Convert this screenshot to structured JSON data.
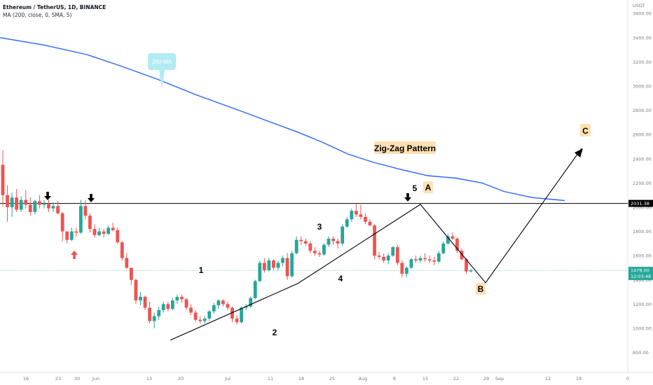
{
  "header": {
    "title": "Ethereum / TetherUS, 1D, BINANCE",
    "indicator": "MA (200, close, 0, SMA, 5)"
  },
  "axis": {
    "currency": "USDT",
    "y_ticks": [
      800,
      1000,
      1200,
      1400,
      1600,
      1800,
      2000,
      2200,
      2400,
      2600,
      2800,
      3000,
      3200,
      3400,
      3600
    ],
    "y_tick_labels": [
      "800.00",
      "1000.00",
      "1200.00",
      "1400.00",
      "1600.00",
      "1800.00",
      "2000.00",
      "2200.00",
      "2400.00",
      "2600.00",
      "2800.00",
      "3000.00",
      "3200.00",
      "3400.00",
      "3600.00"
    ],
    "x_tick_labels": [
      "16",
      "23",
      "30",
      "Jun",
      "13",
      "20",
      "Jul",
      "11",
      "18",
      "25",
      "Aug",
      "8",
      "15",
      "22",
      "29",
      "Sep",
      "12",
      "19",
      "0"
    ],
    "price_tag": "1479.00",
    "countdown": "12:03:48",
    "level_tag": "2031.38"
  },
  "annotations": {
    "ma_bubble": "200-MA",
    "pattern_title": "Zig-Zag Pattern",
    "waves": [
      "1",
      "2",
      "3",
      "4",
      "5"
    ],
    "abc": [
      "A",
      "B",
      "C"
    ]
  },
  "colors": {
    "bull": "#26a69a",
    "bear": "#ef5350",
    "ma": "#2962ff",
    "level": "#000000",
    "price_line": "#26a69a",
    "bubble": "#b2ebf2",
    "label_bg": "#ffe0b2"
  },
  "chart_data": {
    "type": "candlestick",
    "symbol": "Ethereum / TetherUS",
    "interval": "1D",
    "exchange": "BINANCE",
    "y_axis_unit": "USDT",
    "ylim": [
      700,
      3700
    ],
    "horizontal_level": 2031.38,
    "last_price": 1479.0,
    "candles_ohlc": [
      [
        2350,
        2470,
        2010,
        2100
      ],
      [
        2100,
        2180,
        1880,
        2000
      ],
      [
        2000,
        2120,
        1920,
        2080
      ],
      [
        2080,
        2150,
        1960,
        1980
      ],
      [
        1980,
        2090,
        1960,
        2060
      ],
      [
        2060,
        2140,
        1990,
        2020
      ],
      [
        2020,
        2080,
        1930,
        1960
      ],
      [
        1960,
        2060,
        1940,
        2050
      ],
      [
        2050,
        2100,
        1990,
        2020
      ],
      [
        2020,
        2060,
        1990,
        2030
      ],
      [
        2030,
        2060,
        1960,
        1990
      ],
      [
        1990,
        2040,
        1960,
        2010
      ],
      [
        2010,
        2050,
        1940,
        1950
      ],
      [
        1950,
        1960,
        1720,
        1800
      ],
      [
        1800,
        1800,
        1700,
        1730
      ],
      [
        1730,
        1830,
        1720,
        1800
      ],
      [
        1800,
        1830,
        1760,
        1790
      ],
      [
        1790,
        2060,
        1780,
        2010
      ],
      [
        2010,
        2060,
        1900,
        1930
      ],
      [
        1930,
        1950,
        1790,
        1820
      ],
      [
        1820,
        1860,
        1750,
        1770
      ],
      [
        1770,
        1830,
        1760,
        1800
      ],
      [
        1800,
        1820,
        1750,
        1780
      ],
      [
        1780,
        1850,
        1770,
        1830
      ],
      [
        1830,
        1870,
        1800,
        1810
      ],
      [
        1810,
        1830,
        1700,
        1710
      ],
      [
        1710,
        1720,
        1560,
        1580
      ],
      [
        1580,
        1620,
        1490,
        1500
      ],
      [
        1500,
        1500,
        1360,
        1400
      ],
      [
        1400,
        1410,
        1200,
        1230
      ],
      [
        1230,
        1300,
        1190,
        1260
      ],
      [
        1260,
        1270,
        1150,
        1170
      ],
      [
        1170,
        1220,
        1040,
        1060
      ],
      [
        1060,
        1130,
        1000,
        1100
      ],
      [
        1100,
        1180,
        1070,
        1150
      ],
      [
        1150,
        1220,
        1130,
        1200
      ],
      [
        1200,
        1220,
        1140,
        1160
      ],
      [
        1160,
        1250,
        1150,
        1230
      ],
      [
        1230,
        1280,
        1200,
        1260
      ],
      [
        1260,
        1280,
        1210,
        1240
      ],
      [
        1240,
        1250,
        1150,
        1170
      ],
      [
        1170,
        1200,
        1110,
        1130
      ],
      [
        1130,
        1150,
        1050,
        1070
      ],
      [
        1070,
        1100,
        1040,
        1060
      ],
      [
        1060,
        1100,
        1040,
        1080
      ],
      [
        1080,
        1150,
        1060,
        1140
      ],
      [
        1140,
        1210,
        1120,
        1190
      ],
      [
        1190,
        1240,
        1160,
        1230
      ],
      [
        1230,
        1240,
        1180,
        1200
      ],
      [
        1200,
        1220,
        1150,
        1170
      ],
      [
        1170,
        1180,
        1050,
        1080
      ],
      [
        1080,
        1110,
        1030,
        1050
      ],
      [
        1050,
        1180,
        1040,
        1170
      ],
      [
        1170,
        1200,
        1150,
        1180
      ],
      [
        1180,
        1260,
        1170,
        1250
      ],
      [
        1250,
        1400,
        1240,
        1390
      ],
      [
        1390,
        1560,
        1380,
        1540
      ],
      [
        1540,
        1580,
        1460,
        1480
      ],
      [
        1480,
        1580,
        1470,
        1560
      ],
      [
        1560,
        1570,
        1480,
        1500
      ],
      [
        1500,
        1560,
        1480,
        1540
      ],
      [
        1540,
        1600,
        1510,
        1580
      ],
      [
        1580,
        1620,
        1400,
        1430
      ],
      [
        1430,
        1640,
        1420,
        1620
      ],
      [
        1620,
        1760,
        1610,
        1730
      ],
      [
        1730,
        1760,
        1690,
        1720
      ],
      [
        1720,
        1740,
        1680,
        1700
      ],
      [
        1700,
        1720,
        1620,
        1640
      ],
      [
        1640,
        1670,
        1600,
        1620
      ],
      [
        1620,
        1640,
        1590,
        1610
      ],
      [
        1610,
        1700,
        1600,
        1690
      ],
      [
        1690,
        1760,
        1670,
        1740
      ],
      [
        1740,
        1760,
        1690,
        1720
      ],
      [
        1720,
        1740,
        1660,
        1700
      ],
      [
        1700,
        1860,
        1680,
        1840
      ],
      [
        1840,
        1920,
        1830,
        1900
      ],
      [
        1900,
        1990,
        1880,
        1970
      ],
      [
        1970,
        2030,
        1920,
        1940
      ],
      [
        1940,
        2020,
        1900,
        1920
      ],
      [
        1920,
        1950,
        1860,
        1880
      ],
      [
        1880,
        1900,
        1840,
        1850
      ],
      [
        1850,
        1860,
        1570,
        1600
      ],
      [
        1600,
        1630,
        1570,
        1590
      ],
      [
        1590,
        1620,
        1540,
        1560
      ],
      [
        1560,
        1620,
        1530,
        1600
      ],
      [
        1600,
        1680,
        1590,
        1670
      ],
      [
        1670,
        1690,
        1520,
        1540
      ],
      [
        1540,
        1560,
        1420,
        1450
      ],
      [
        1450,
        1510,
        1420,
        1500
      ],
      [
        1500,
        1580,
        1490,
        1570
      ],
      [
        1570,
        1600,
        1540,
        1560
      ],
      [
        1560,
        1600,
        1540,
        1580
      ],
      [
        1580,
        1620,
        1550,
        1570
      ],
      [
        1570,
        1600,
        1540,
        1560
      ],
      [
        1560,
        1590,
        1520,
        1550
      ],
      [
        1550,
        1640,
        1540,
        1620
      ],
      [
        1620,
        1720,
        1610,
        1700
      ],
      [
        1700,
        1780,
        1690,
        1760
      ],
      [
        1760,
        1790,
        1730,
        1740
      ],
      [
        1740,
        1750,
        1620,
        1640
      ],
      [
        1640,
        1660,
        1560,
        1570
      ],
      [
        1570,
        1580,
        1450,
        1470
      ],
      [
        1470,
        1490,
        1460,
        1479
      ]
    ],
    "moving_average_200": [
      [
        0,
        3400
      ],
      [
        20,
        3340
      ],
      [
        40,
        3260
      ],
      [
        55,
        3170
      ],
      [
        72,
        3060
      ],
      [
        90,
        2930
      ],
      [
        110,
        2800
      ],
      [
        125,
        2700
      ],
      [
        137,
        2620
      ],
      [
        148,
        2540
      ],
      [
        160,
        2440
      ],
      [
        172,
        2370
      ],
      [
        185,
        2310
      ],
      [
        197,
        2260
      ],
      [
        210,
        2240
      ],
      [
        222,
        2200
      ],
      [
        232,
        2130
      ],
      [
        245,
        2080
      ],
      [
        260,
        2055
      ]
    ],
    "zigzag_path": [
      [
        "1",
        905
      ],
      [
        "2",
        1310
      ],
      [
        "3",
        1220
      ],
      [
        "4",
        2020
      ],
      [
        "5",
        1380
      ],
      [
        "C",
        2490
      ]
    ],
    "wave_labels": [
      "1",
      "2",
      "3",
      "4",
      "5"
    ],
    "abc_labels": [
      "A",
      "B",
      "C"
    ],
    "title_annotation": "Zig-Zag Pattern",
    "ma_label": "200-MA"
  }
}
